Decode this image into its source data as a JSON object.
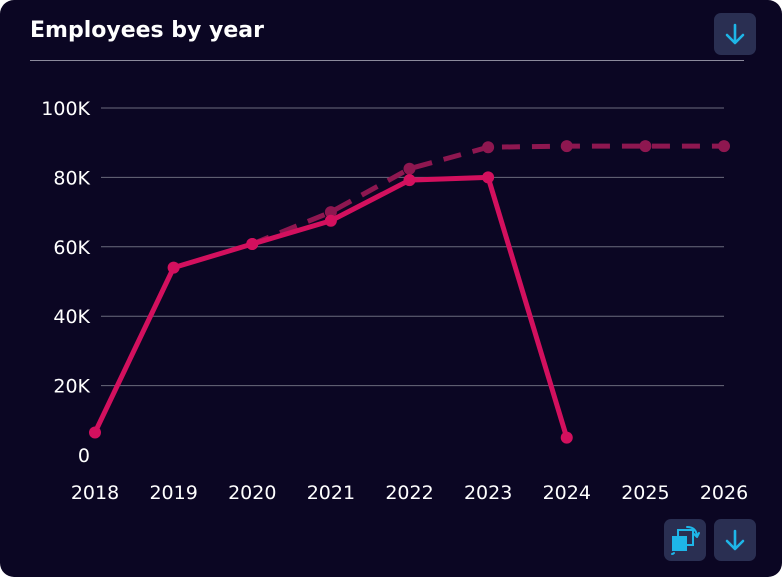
{
  "card": {
    "title": "Employees by year"
  },
  "chart_data": {
    "type": "line",
    "title": "Employees by year",
    "xlabel": "",
    "ylabel": "",
    "categories": [
      "2018",
      "2019",
      "2020",
      "2021",
      "2022",
      "2023",
      "2024",
      "2025",
      "2026"
    ],
    "ylim": [
      0,
      100000
    ],
    "ytick_labels": [
      "0",
      "20K",
      "40K",
      "60K",
      "80K",
      "100K"
    ],
    "ytick_values": [
      0,
      20000,
      40000,
      60000,
      80000,
      100000
    ],
    "grid": true,
    "legend": "none",
    "series": [
      {
        "style": "solid",
        "color": "#d3105e",
        "values": [
          6500,
          54000,
          60800,
          67500,
          79200,
          80000,
          5000,
          null,
          null
        ]
      },
      {
        "style": "dashed",
        "color": "#8e1750",
        "values": [
          null,
          null,
          60800,
          70000,
          82500,
          88700,
          89000,
          89000,
          89000
        ]
      }
    ]
  },
  "colors": {
    "background": "#0b0623",
    "grid": "#6b6a7c",
    "button": "#2a2f52",
    "icon_accent": "#1eb6e8"
  },
  "icons": {
    "download": "download-arrow-icon",
    "swap": "swap-view-icon"
  }
}
